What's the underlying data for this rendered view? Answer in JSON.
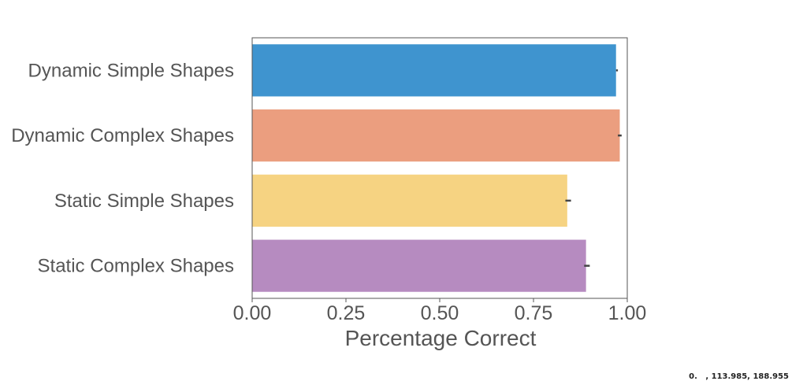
{
  "chart_data": {
    "type": "bar",
    "orientation": "horizontal",
    "categories": [
      "Dynamic Simple Shapes",
      "Dynamic Complex Shapes",
      "Static Simple Shapes",
      "Static Complex Shapes"
    ],
    "values": [
      0.97,
      0.98,
      0.84,
      0.89
    ],
    "error_low": [
      0.97,
      0.975,
      0.835,
      0.885
    ],
    "error_high": [
      0.975,
      0.985,
      0.85,
      0.9
    ],
    "colors": [
      "#3f94cf",
      "#eb9e7f",
      "#f6d382",
      "#b68bc0"
    ],
    "xlabel": "Percentage Correct",
    "ylabel": "",
    "title": "",
    "xlim": [
      0.0,
      1.0
    ],
    "xticks": [
      0.0,
      0.25,
      0.5,
      0.75,
      1.0
    ],
    "xtick_labels": [
      "0.00",
      "0.25",
      "0.50",
      "0.75",
      "1.00"
    ],
    "grid": false,
    "legend": "none"
  },
  "corner_note": "0.   , 113.985, 188.955"
}
